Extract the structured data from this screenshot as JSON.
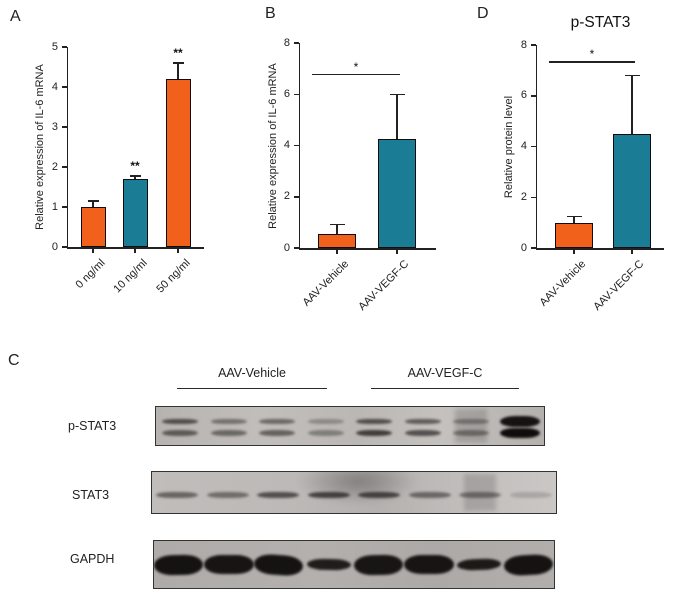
{
  "figure": {
    "panels": {
      "a": "A",
      "b": "B",
      "c": "C",
      "d": "D"
    }
  },
  "colors": {
    "orange": "#F2611B",
    "teal": "#1B7C96",
    "axis": "#222222"
  },
  "chart_data": [
    {
      "id": "A",
      "type": "bar",
      "categories": [
        "0 ng/ml",
        "10 ng/ml",
        "50 ng/ml"
      ],
      "values": [
        1.0,
        1.7,
        4.2
      ],
      "errors": [
        0.15,
        0.07,
        0.4
      ],
      "bar_colors": [
        "orange",
        "teal",
        "orange"
      ],
      "bar_annotations": [
        "",
        "**",
        "**"
      ],
      "title": "",
      "xlabel": "",
      "ylabel": "Relative expression of IL-6 mRNA",
      "ylim": [
        0,
        5
      ],
      "yticks": [
        0,
        1,
        2,
        3,
        4,
        5
      ],
      "grid": false,
      "legend": false
    },
    {
      "id": "B",
      "type": "bar",
      "categories": [
        "AAV-Vehicle",
        "AAV-VEGF-C"
      ],
      "values": [
        0.55,
        4.25
      ],
      "errors": [
        0.37,
        1.75
      ],
      "bar_colors": [
        "orange",
        "teal"
      ],
      "bar_annotations": [
        "",
        ""
      ],
      "title": "",
      "xlabel": "",
      "ylabel": "Relative expression of IL-6 mRNA",
      "ylim": [
        0,
        8
      ],
      "yticks": [
        0,
        2,
        4,
        6,
        8
      ],
      "grid": false,
      "legend": false,
      "significance": {
        "label": "*",
        "from": 0,
        "to": 1,
        "line_y": 6.8
      }
    },
    {
      "id": "D",
      "type": "bar",
      "categories": [
        "AAV-Vehicle",
        "AAV-VEGF-C"
      ],
      "values": [
        1.0,
        4.5
      ],
      "errors": [
        0.25,
        2.3
      ],
      "bar_colors": [
        "orange",
        "teal"
      ],
      "bar_annotations": [
        "",
        ""
      ],
      "title": "p-STAT3",
      "xlabel": "",
      "ylabel": "Relative protein level",
      "ylim": [
        0,
        8
      ],
      "yticks": [
        0,
        2,
        4,
        6,
        8
      ],
      "grid": false,
      "legend": false,
      "significance": {
        "label": "*",
        "from": 0,
        "to": 1,
        "line_y": 7.35
      }
    }
  ],
  "western_blot": {
    "panel": "C",
    "group_labels": [
      "AAV-Vehicle",
      "AAV-VEGF-C"
    ],
    "lanes_per_group": 4,
    "rows": [
      {
        "label": "p-STAT3",
        "band_type": "doublet",
        "lanes": [
          [
            0.62,
            0.55
          ],
          [
            0.42,
            0.48
          ],
          [
            0.48,
            0.52
          ],
          [
            0.28,
            0.35
          ],
          [
            0.62,
            0.72
          ],
          [
            0.55,
            0.62
          ],
          [
            0.35,
            0.4
          ],
          [
            0.97,
            1.0
          ]
        ],
        "smear_lanes": [
          6
        ]
      },
      {
        "label": "STAT3",
        "band_type": "single",
        "lanes": [
          0.5,
          0.45,
          0.62,
          0.68,
          0.66,
          0.48,
          0.42,
          0.16
        ],
        "smear_lanes": [
          6
        ],
        "cloud": true
      },
      {
        "label": "GAPDH",
        "band_type": "single",
        "lanes": [
          0.96,
          0.95,
          0.96,
          0.9,
          0.94,
          0.95,
          0.92,
          0.96
        ],
        "smear_lanes": []
      }
    ]
  }
}
